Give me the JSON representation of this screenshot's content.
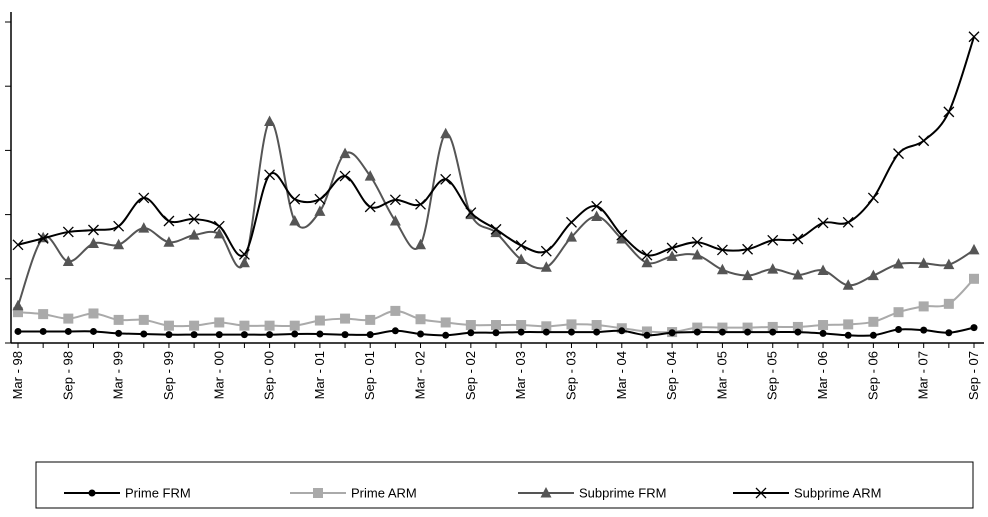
{
  "chart_data": {
    "type": "line",
    "title": "",
    "xlabel": "",
    "ylabel": "",
    "ylim": [
      0,
      5
    ],
    "y_ticks": [
      0,
      1,
      2,
      3,
      4,
      5
    ],
    "y_tick_labels_shown": false,
    "grid": false,
    "legend_position": "bottom",
    "categories": [
      "Mar - 98",
      "Jun - 98",
      "Sep - 98",
      "Dec - 98",
      "Mar - 99",
      "Jun - 99",
      "Sep - 99",
      "Dec - 99",
      "Mar - 00",
      "Jun - 00",
      "Sep - 00",
      "Dec - 00",
      "Mar - 01",
      "Jun - 01",
      "Sep - 01",
      "Dec - 01",
      "Mar - 02",
      "Jun - 02",
      "Sep - 02",
      "Dec - 02",
      "Mar - 03",
      "Jun - 03",
      "Sep - 03",
      "Dec - 03",
      "Mar - 04",
      "Jun - 04",
      "Sep - 04",
      "Dec - 04",
      "Mar - 05",
      "Jun - 05",
      "Sep - 05",
      "Dec - 05",
      "Mar - 06",
      "Jun - 06",
      "Sep - 06",
      "Dec - 06",
      "Mar - 07",
      "Jun - 07",
      "Sep - 07"
    ],
    "x_tick_labels": [
      "Mar - 98",
      "Sep - 98",
      "Mar - 99",
      "Sep - 99",
      "Mar - 00",
      "Sep - 00",
      "Mar - 01",
      "Sep - 01",
      "Mar - 02",
      "Sep - 02",
      "Mar - 03",
      "Sep - 03",
      "Mar - 04",
      "Sep - 04",
      "Mar - 05",
      "Sep - 05",
      "Mar - 06",
      "Sep - 06",
      "Mar - 07",
      "Sep - 07"
    ],
    "series": [
      {
        "name": "Prime FRM",
        "color": "#000000",
        "marker": "circle",
        "values": [
          0.18,
          0.18,
          0.18,
          0.18,
          0.15,
          0.14,
          0.13,
          0.13,
          0.13,
          0.13,
          0.13,
          0.14,
          0.14,
          0.13,
          0.13,
          0.19,
          0.14,
          0.12,
          0.16,
          0.16,
          0.17,
          0.17,
          0.17,
          0.17,
          0.19,
          0.12,
          0.16,
          0.17,
          0.17,
          0.17,
          0.17,
          0.17,
          0.15,
          0.12,
          0.12,
          0.21,
          0.2,
          0.16,
          0.24
        ]
      },
      {
        "name": "Prime ARM",
        "color": "#aaaaaa",
        "marker": "square",
        "values": [
          0.48,
          0.45,
          0.38,
          0.46,
          0.36,
          0.36,
          0.27,
          0.27,
          0.32,
          0.27,
          0.27,
          0.27,
          0.35,
          0.38,
          0.36,
          0.5,
          0.37,
          0.32,
          0.28,
          0.28,
          0.28,
          0.26,
          0.29,
          0.28,
          0.23,
          0.18,
          0.17,
          0.24,
          0.24,
          0.24,
          0.25,
          0.25,
          0.28,
          0.29,
          0.33,
          0.48,
          0.57,
          0.61,
          1.0
        ]
      },
      {
        "name": "Subprime FRM",
        "color": "#555555",
        "marker": "triangle",
        "values": [
          0.58,
          1.64,
          1.27,
          1.55,
          1.53,
          1.79,
          1.57,
          1.68,
          1.7,
          1.25,
          3.45,
          1.9,
          2.05,
          2.95,
          2.6,
          1.9,
          1.53,
          3.26,
          2.0,
          1.72,
          1.3,
          1.18,
          1.65,
          1.97,
          1.62,
          1.25,
          1.35,
          1.37,
          1.14,
          1.05,
          1.15,
          1.06,
          1.13,
          0.9,
          1.05,
          1.23,
          1.24,
          1.22,
          1.45
        ]
      },
      {
        "name": "Subprime ARM",
        "color": "#000000",
        "marker": "x",
        "values": [
          1.53,
          1.63,
          1.73,
          1.76,
          1.82,
          2.26,
          1.9,
          1.93,
          1.82,
          1.38,
          2.62,
          2.24,
          2.24,
          2.6,
          2.12,
          2.23,
          2.16,
          2.55,
          2.03,
          1.77,
          1.52,
          1.43,
          1.88,
          2.13,
          1.68,
          1.37,
          1.48,
          1.57,
          1.45,
          1.46,
          1.6,
          1.62,
          1.87,
          1.88,
          2.26,
          2.95,
          3.15,
          3.6,
          4.77
        ]
      }
    ]
  }
}
